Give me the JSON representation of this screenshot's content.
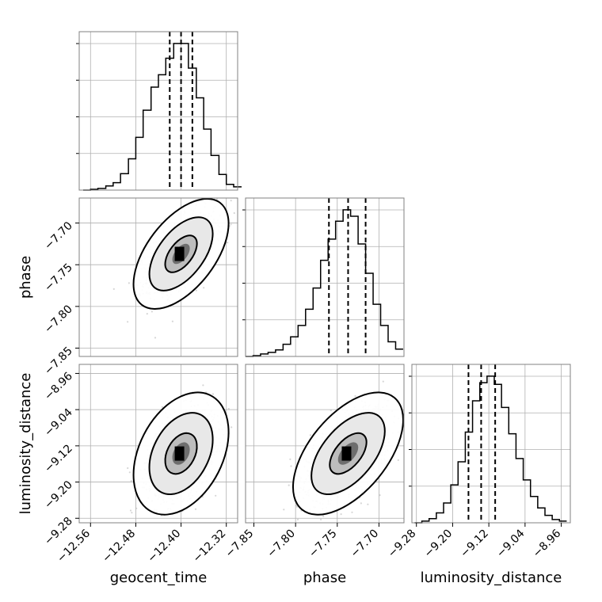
{
  "chart_data": {
    "type": "corner",
    "parameters": [
      "geocent_time",
      "phase",
      "luminosity_distance"
    ],
    "axis_labels": {
      "x": [
        "geocent_time",
        "phase",
        "luminosity_distance"
      ],
      "y": [
        "",
        "phase",
        "luminosity_distance"
      ]
    },
    "ranges": {
      "geocent_time": [
        -12.58,
        -12.3
      ],
      "phase": [
        -7.86,
        -7.67
      ],
      "luminosity_distance": [
        -9.29,
        -8.94
      ]
    },
    "ticks": {
      "geocent_time": [
        -12.56,
        -12.48,
        -12.4,
        -12.32
      ],
      "phase": [
        -7.85,
        -7.8,
        -7.75,
        -7.7
      ],
      "luminosity_distance": [
        -9.28,
        -9.2,
        -9.12,
        -9.04,
        -8.96
      ]
    },
    "tick_labels": {
      "geocent_time": [
        "−12.56",
        "−12.48",
        "−12.40",
        "−12.32"
      ],
      "phase": [
        "−7.85",
        "−7.80",
        "−7.75",
        "−7.70"
      ],
      "luminosity_distance": [
        "−9.28",
        "−9.20",
        "−9.12",
        "−9.04",
        "−8.96"
      ]
    },
    "quantiles": {
      "geocent_time": [
        -12.42,
        -12.4,
        -12.38
      ],
      "phase": [
        -7.76,
        -7.737,
        -7.716
      ],
      "luminosity_distance": [
        -9.165,
        -9.137,
        -9.106
      ]
    },
    "marginals": {
      "geocent_time": {
        "edges": [
          -12.573,
          -12.56,
          -12.547,
          -12.533,
          -12.52,
          -12.507,
          -12.493,
          -12.48,
          -12.467,
          -12.453,
          -12.44,
          -12.427,
          -12.413,
          -12.4,
          -12.387,
          -12.373,
          -12.36,
          -12.347,
          -12.333,
          -12.32,
          -12.307,
          -12.293
        ],
        "counts": [
          0,
          1,
          2,
          5,
          9,
          20,
          38,
          64,
          97,
          125,
          140,
          160,
          178,
          178,
          148,
          112,
          74,
          42,
          19,
          7,
          4
        ]
      },
      "phase": {
        "edges": [
          -7.86,
          -7.851,
          -7.842,
          -7.833,
          -7.824,
          -7.815,
          -7.806,
          -7.797,
          -7.788,
          -7.779,
          -7.77,
          -7.761,
          -7.752,
          -7.743,
          -7.734,
          -7.725,
          -7.716,
          -7.707,
          -7.698,
          -7.689,
          -7.68,
          -7.671
        ],
        "counts": [
          0,
          1,
          3,
          5,
          8,
          15,
          24,
          38,
          58,
          84,
          118,
          144,
          166,
          180,
          172,
          138,
          102,
          64,
          38,
          18,
          9
        ]
      },
      "luminosity_distance": {
        "edges": [
          -9.284,
          -9.268,
          -9.252,
          -9.236,
          -9.22,
          -9.204,
          -9.188,
          -9.172,
          -9.156,
          -9.14,
          -9.124,
          -9.108,
          -9.092,
          -9.076,
          -9.06,
          -9.044,
          -9.028,
          -9.012,
          -8.996,
          -8.98,
          -8.964,
          -8.948
        ],
        "counts": [
          0,
          2,
          5,
          12,
          24,
          46,
          74,
          110,
          148,
          170,
          178,
          168,
          140,
          108,
          78,
          52,
          32,
          18,
          9,
          4,
          2
        ]
      }
    },
    "joint": {
      "phase_vs_geocent_time": {
        "mean": [
          -12.4,
          -7.737
        ],
        "std": [
          0.028,
          0.022
        ],
        "rho": 0.55
      },
      "luminosity_distance_vs_geocent_time": {
        "mean": [
          -12.4,
          -9.137
        ],
        "std": [
          0.028,
          0.045
        ],
        "rho": 0.35
      },
      "luminosity_distance_vs_phase": {
        "mean": [
          -7.737,
          -9.137
        ],
        "std": [
          0.022,
          0.045
        ],
        "rho": 0.55
      }
    },
    "contour_levels": [
      "0.39",
      "0.86",
      "0.99"
    ],
    "grid": true,
    "line_color": "#000000",
    "point_color": "#b4b4b4"
  }
}
